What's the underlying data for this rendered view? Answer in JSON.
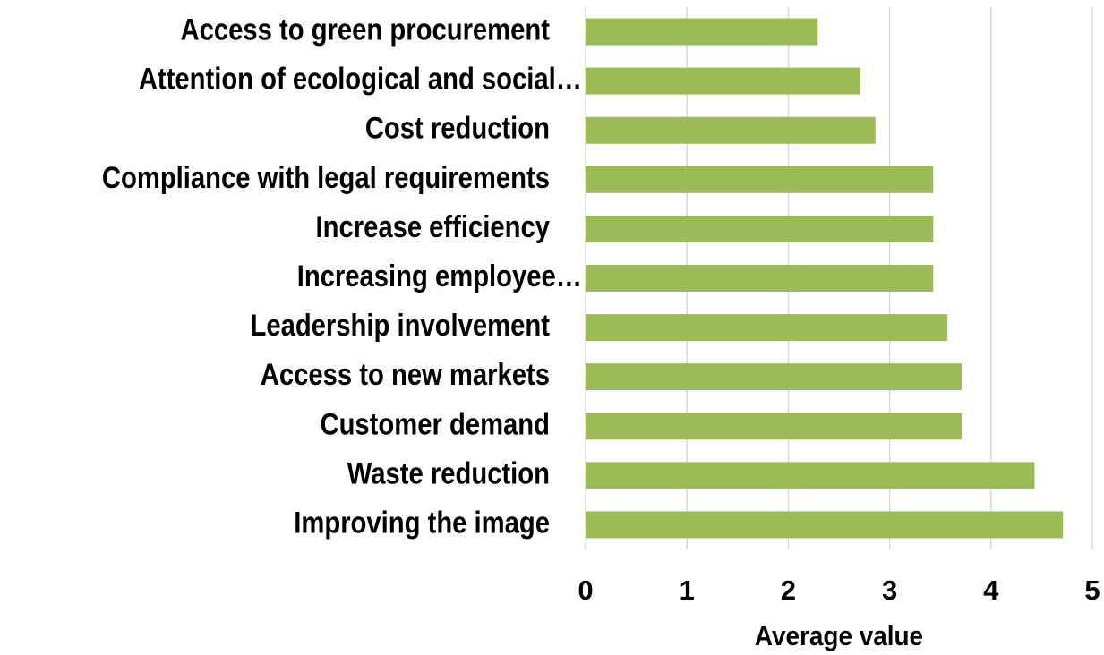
{
  "chart_data": {
    "type": "bar",
    "orientation": "horizontal",
    "x_label": "Average value",
    "categories": [
      "Access to green procurement",
      "Attention of ecological and social…",
      "Cost reduction",
      "Compliance with legal requirements",
      "Increase efficiency",
      "Increasing employee…",
      "Leadership involvement",
      "Access to new markets",
      "Customer demand",
      "Waste reduction",
      "Improving the image"
    ],
    "values": [
      2.29,
      2.71,
      2.86,
      3.43,
      3.43,
      3.43,
      3.57,
      3.71,
      3.71,
      4.43,
      4.71
    ],
    "color": "#9bbb59",
    "xlim": [
      0,
      5
    ],
    "xticks": [
      0,
      1,
      2,
      3,
      4,
      5
    ],
    "grid": true
  }
}
